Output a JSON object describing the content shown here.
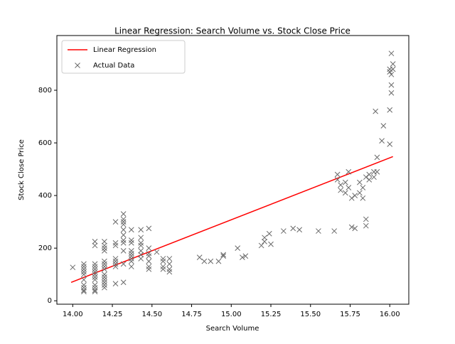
{
  "chart_data": {
    "type": "scatter",
    "title": "Linear Regression: Search Volume vs. Stock Close Price",
    "x_label": "Search Volume",
    "y_label": "Stock Close Price",
    "xlim": [
      13.9,
      16.12
    ],
    "ylim": [
      -13,
      1008
    ],
    "xticks": [
      {
        "value": 14,
        "label": "14.00"
      },
      {
        "value": 14.25,
        "label": "14.25"
      },
      {
        "value": 14.5,
        "label": "14.50"
      },
      {
        "value": 14.75,
        "label": "14.75"
      },
      {
        "value": 15,
        "label": "15.00"
      },
      {
        "value": 15.25,
        "label": "15.25"
      },
      {
        "value": 15.5,
        "label": "15.50"
      },
      {
        "value": 15.75,
        "label": "15.75"
      },
      {
        "value": 16,
        "label": "16.00"
      }
    ],
    "yticks": [
      0,
      200,
      400,
      600,
      800
    ],
    "legend": "upper left",
    "series": [
      {
        "name": "Linear Regression",
        "type": "line",
        "color": "#ff0000",
        "x": [
          13.99,
          16.02
        ],
        "values": [
          70,
          548
        ]
      },
      {
        "name": "Actual Data",
        "type": "scatter",
        "color": "#696969",
        "x": [
          14.0,
          14.07,
          14.07,
          14.07,
          14.07,
          14.07,
          14.07,
          14.07,
          14.07,
          14.07,
          14.07,
          14.14,
          14.14,
          14.14,
          14.14,
          14.14,
          14.14,
          14.14,
          14.14,
          14.14,
          14.14,
          14.14,
          14.14,
          14.14,
          14.2,
          14.2,
          14.2,
          14.2,
          14.2,
          14.2,
          14.2,
          14.2,
          14.2,
          14.2,
          14.2,
          14.2,
          14.2,
          14.2,
          14.27,
          14.27,
          14.27,
          14.27,
          14.27,
          14.27,
          14.27,
          14.27,
          14.32,
          14.32,
          14.32,
          14.32,
          14.32,
          14.32,
          14.32,
          14.32,
          14.32,
          14.32,
          14.32,
          14.37,
          14.37,
          14.37,
          14.37,
          14.37,
          14.37,
          14.37,
          14.37,
          14.37,
          14.43,
          14.43,
          14.43,
          14.43,
          14.43,
          14.43,
          14.43,
          14.48,
          14.48,
          14.48,
          14.48,
          14.48,
          14.48,
          14.48,
          14.53,
          14.57,
          14.57,
          14.57,
          14.57,
          14.61,
          14.61,
          14.61,
          14.61,
          14.8,
          14.83,
          14.87,
          14.92,
          14.95,
          14.95,
          15.04,
          15.07,
          15.09,
          15.19,
          15.21,
          15.21,
          15.24,
          15.25,
          15.33,
          15.39,
          15.43,
          15.55,
          15.65,
          15.67,
          15.67,
          15.69,
          15.69,
          15.72,
          15.72,
          15.74,
          15.74,
          15.76,
          15.76,
          15.78,
          15.78,
          15.81,
          15.81,
          15.83,
          15.83,
          15.85,
          15.85,
          15.85,
          15.87,
          15.87,
          15.9,
          15.9,
          15.92,
          15.92,
          15.91,
          15.95,
          15.96,
          16.0,
          16.0,
          16.0,
          16.0,
          16.01,
          16.01,
          16.01,
          16.01,
          16.02,
          16.02
        ],
        "values": [
          127,
          140,
          130,
          120,
          110,
          100,
          80,
          60,
          50,
          40,
          35,
          225,
          210,
          140,
          130,
          120,
          110,
          100,
          90,
          80,
          60,
          50,
          40,
          35,
          225,
          210,
          200,
          190,
          150,
          140,
          130,
          120,
          100,
          90,
          80,
          70,
          60,
          50,
          300,
          220,
          210,
          160,
          150,
          140,
          130,
          65,
          330,
          310,
          300,
          290,
          270,
          250,
          230,
          220,
          190,
          140,
          70,
          270,
          230,
          220,
          190,
          180,
          170,
          160,
          150,
          130,
          270,
          240,
          220,
          210,
          190,
          175,
          160,
          275,
          200,
          180,
          170,
          150,
          130,
          120,
          185,
          160,
          150,
          130,
          120,
          160,
          140,
          120,
          110,
          165,
          150,
          150,
          150,
          175,
          170,
          200,
          165,
          170,
          210,
          225,
          240,
          255,
          215,
          265,
          275,
          270,
          265,
          265,
          480,
          460,
          440,
          420,
          450,
          410,
          430,
          490,
          390,
          280,
          400,
          275,
          450,
          410,
          430,
          390,
          310,
          285,
          470,
          480,
          460,
          490,
          470,
          545,
          490,
          720,
          608,
          665,
          725,
          595,
          880,
          870,
          940,
          820,
          790,
          860,
          880,
          900
        ]
      }
    ]
  }
}
